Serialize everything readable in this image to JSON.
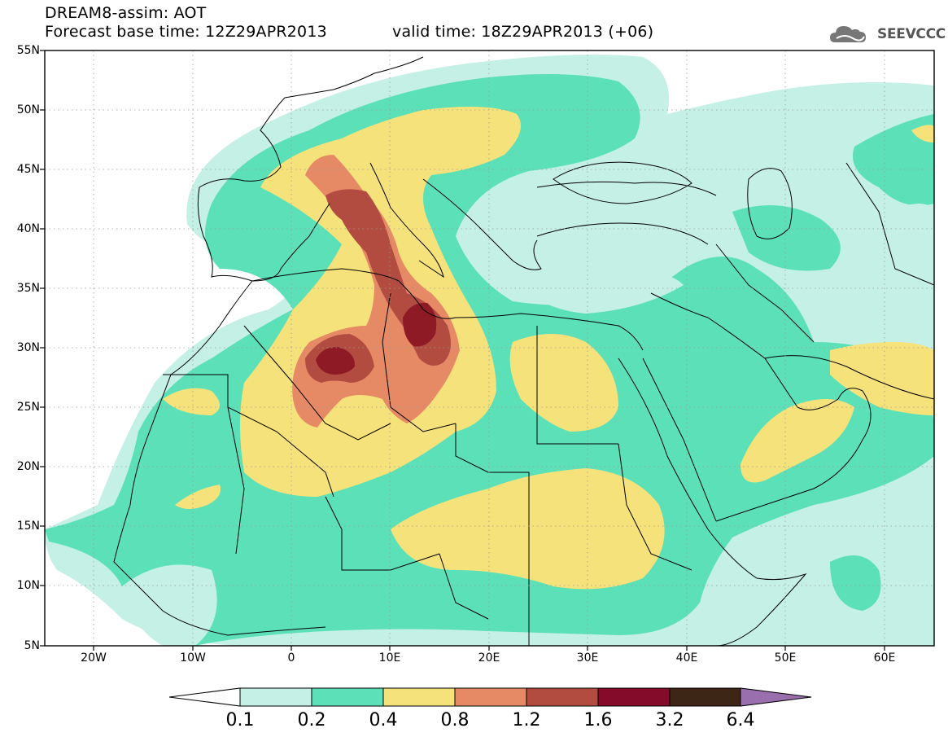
{
  "header": {
    "title_line1": "DREAM8-assim: AOT",
    "title_line2": "Forecast base time: 12Z29APR2013",
    "valid_time": "valid time: 18Z29APR2013 (+06)",
    "logo_text": "SEEVCCC"
  },
  "axes": {
    "lat_labels": [
      "55N",
      "50N",
      "45N",
      "40N",
      "35N",
      "30N",
      "25N",
      "20N",
      "15N",
      "10N",
      "5N"
    ],
    "lon_labels": [
      "20W",
      "10W",
      "0",
      "10E",
      "20E",
      "30E",
      "40E",
      "50E",
      "60E"
    ],
    "lat_range": [
      5,
      55
    ],
    "lon_range": [
      -25,
      65
    ]
  },
  "colorbar": {
    "levels": [
      "0.1",
      "0.2",
      "0.4",
      "0.8",
      "1.2",
      "1.6",
      "3.2",
      "6.4"
    ],
    "colors": [
      "#c5f0e6",
      "#5ce0b8",
      "#f6e27a",
      "#e68a66",
      "#b24c41",
      "#850b2a",
      "#3e2616",
      "#9a6fae"
    ]
  },
  "map_colors": {
    "ocean_bg": "#ffffff",
    "grid": "#9a9a9a",
    "coast": "#000000"
  }
}
